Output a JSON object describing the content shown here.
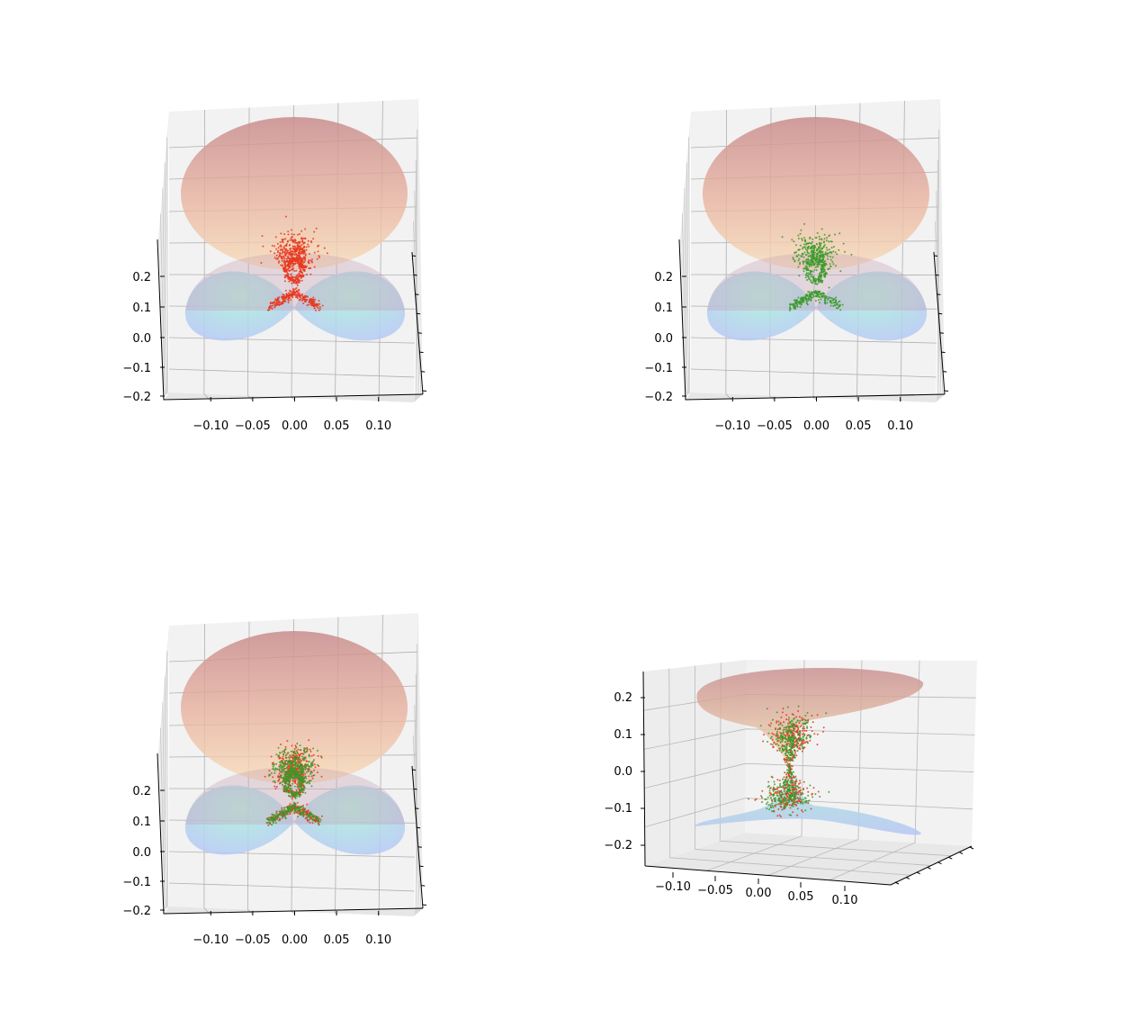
{
  "figure": {
    "background": "#ffffff"
  },
  "chart_data": [
    {
      "type": "scatter",
      "projection": "3d",
      "view": "front-elevated",
      "x_ticks": [
        "−0.10",
        "−0.05",
        "0.00",
        "0.05",
        "0.10"
      ],
      "z_ticks": [
        "−0.2",
        "−0.1",
        "0.0",
        "0.1",
        "0.2"
      ],
      "xlim": [
        -0.14,
        0.14
      ],
      "zlim": [
        -0.2,
        0.25
      ],
      "grid": true,
      "surfaces": [
        "upper-ellipse",
        "lower-lobes"
      ],
      "scatter_series": [
        {
          "color": "#e8381e",
          "points": 900
        }
      ]
    },
    {
      "type": "scatter",
      "projection": "3d",
      "view": "front-elevated",
      "x_ticks": [
        "−0.10",
        "−0.05",
        "0.00",
        "0.05",
        "0.10"
      ],
      "z_ticks": [
        "−0.2",
        "−0.1",
        "0.0",
        "0.1",
        "0.2"
      ],
      "xlim": [
        -0.14,
        0.14
      ],
      "zlim": [
        -0.2,
        0.25
      ],
      "grid": true,
      "surfaces": [
        "upper-ellipse",
        "lower-lobes"
      ],
      "scatter_series": [
        {
          "color": "#3a9a2a",
          "points": 700
        }
      ]
    },
    {
      "type": "scatter",
      "projection": "3d",
      "view": "front-elevated",
      "x_ticks": [
        "−0.10",
        "−0.05",
        "0.00",
        "0.05",
        "0.10"
      ],
      "z_ticks": [
        "−0.2",
        "−0.1",
        "0.0",
        "0.1",
        "0.2"
      ],
      "xlim": [
        -0.14,
        0.14
      ],
      "zlim": [
        -0.2,
        0.25
      ],
      "grid": true,
      "surfaces": [
        "upper-ellipse",
        "lower-lobes"
      ],
      "scatter_series": [
        {
          "color": "#e8381e",
          "points": 700
        },
        {
          "color": "#3a9a2a",
          "points": 700
        }
      ]
    },
    {
      "type": "scatter",
      "projection": "3d",
      "view": "side-low",
      "x_ticks": [
        "−0.10",
        "−0.05",
        "0.00",
        "0.05",
        "0.10"
      ],
      "z_ticks": [
        "−0.2",
        "−0.1",
        "0.0",
        "0.1",
        "0.2"
      ],
      "xlim": [
        -0.14,
        0.14
      ],
      "zlim": [
        -0.25,
        0.25
      ],
      "grid": true,
      "surfaces": [
        "upper-sheet",
        "lower-sheet"
      ],
      "scatter_series": [
        {
          "color": "#e8381e",
          "points": 500
        },
        {
          "color": "#3a9a2a",
          "points": 500
        }
      ]
    }
  ]
}
